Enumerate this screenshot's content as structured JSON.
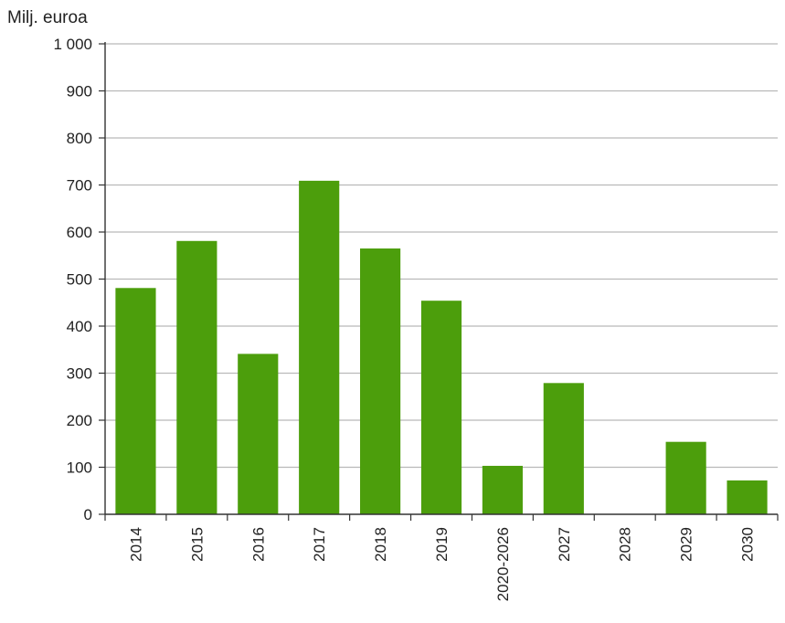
{
  "chart_data": {
    "type": "bar",
    "title": "",
    "xlabel": "",
    "ylabel": "Milj. euroa",
    "categories": [
      "2014",
      "2015",
      "2016",
      "2017",
      "2018",
      "2019",
      "2020-2026",
      "2027",
      "2028",
      "2029",
      "2030"
    ],
    "values": [
      481,
      581,
      341,
      709,
      565,
      454,
      103,
      279,
      0,
      154,
      72
    ],
    "ylim": [
      0,
      1000
    ],
    "yticks": [
      0,
      100,
      200,
      300,
      400,
      500,
      600,
      700,
      800,
      900,
      1000
    ],
    "ytick_labels": [
      "0",
      "100",
      "200",
      "300",
      "400",
      "500",
      "600",
      "700",
      "800",
      "900",
      "1 000"
    ],
    "grid": true,
    "legend": "none",
    "colors": {
      "bar": "#4c9e0c",
      "grid": "#b9b9b9",
      "axis": "#333333"
    }
  }
}
